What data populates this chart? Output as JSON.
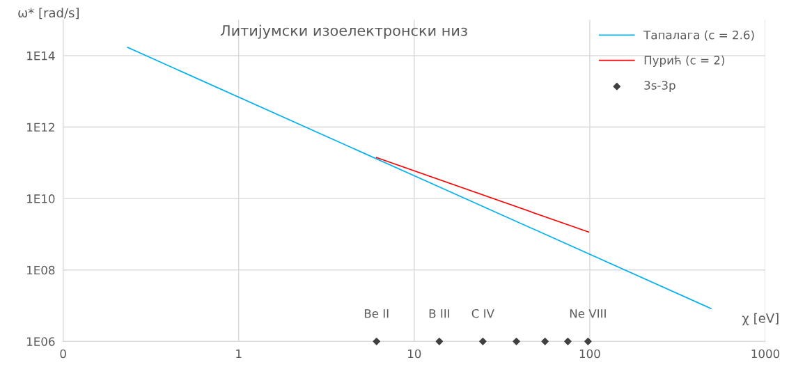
{
  "chart_data": {
    "type": "line",
    "title": "Литијумски изоелектронски низ",
    "xlabel": "χ [eV]",
    "ylabel": "ω* [rad/s]",
    "log": "xy",
    "grid": true,
    "legend": "top right",
    "xlim": [
      0.1,
      1000
    ],
    "xticks": [
      {
        "value": 0.1,
        "label": "0"
      },
      1,
      10,
      100,
      1000
    ],
    "ylim": [
      1000000.0,
      1000000000000000.0
    ],
    "yticks": [
      {
        "value": 1000000.0,
        "label": "1E06"
      },
      {
        "value": 100000000.0,
        "label": "1E08"
      },
      {
        "value": 10000000000.0,
        "label": "1E10"
      },
      {
        "value": 1000000000000.0,
        "label": "1E12"
      },
      {
        "value": 100000000000000.0,
        "label": "1E14"
      }
    ],
    "series": [
      {
        "name": "Тапалага (c = 2.6)",
        "color": "#00b0f0",
        "x": [
          0.233,
          491
        ],
        "values": [
          170000000000000.0,
          8300000.0
        ]
      },
      {
        "name": "Пурић (c = 2)",
        "color": "#ff0000",
        "x": [
          6.1,
          98.6
        ],
        "values": [
          140000000000.0,
          1150000000.0
        ]
      },
      {
        "name": "3s-3p",
        "type": "scatter",
        "color": "#404040",
        "marker": "diamond",
        "x": [
          6.1,
          13.9,
          24.6,
          38.2,
          55.6,
          75,
          97.7
        ],
        "values": [
          1000000.0,
          1000000.0,
          1000000.0,
          1000000.0,
          1000000.0,
          1000000.0,
          1000000.0
        ]
      }
    ],
    "annotations": [
      {
        "text": "Be II",
        "x": 6.1,
        "y": 1000000.0
      },
      {
        "text": "B III",
        "x": 13.9,
        "y": 1000000.0
      },
      {
        "text": "C IV",
        "x": 24.6,
        "y": 1000000.0
      },
      {
        "text": "Ne VIII",
        "x": 97.7,
        "y": 1000000.0
      }
    ]
  }
}
